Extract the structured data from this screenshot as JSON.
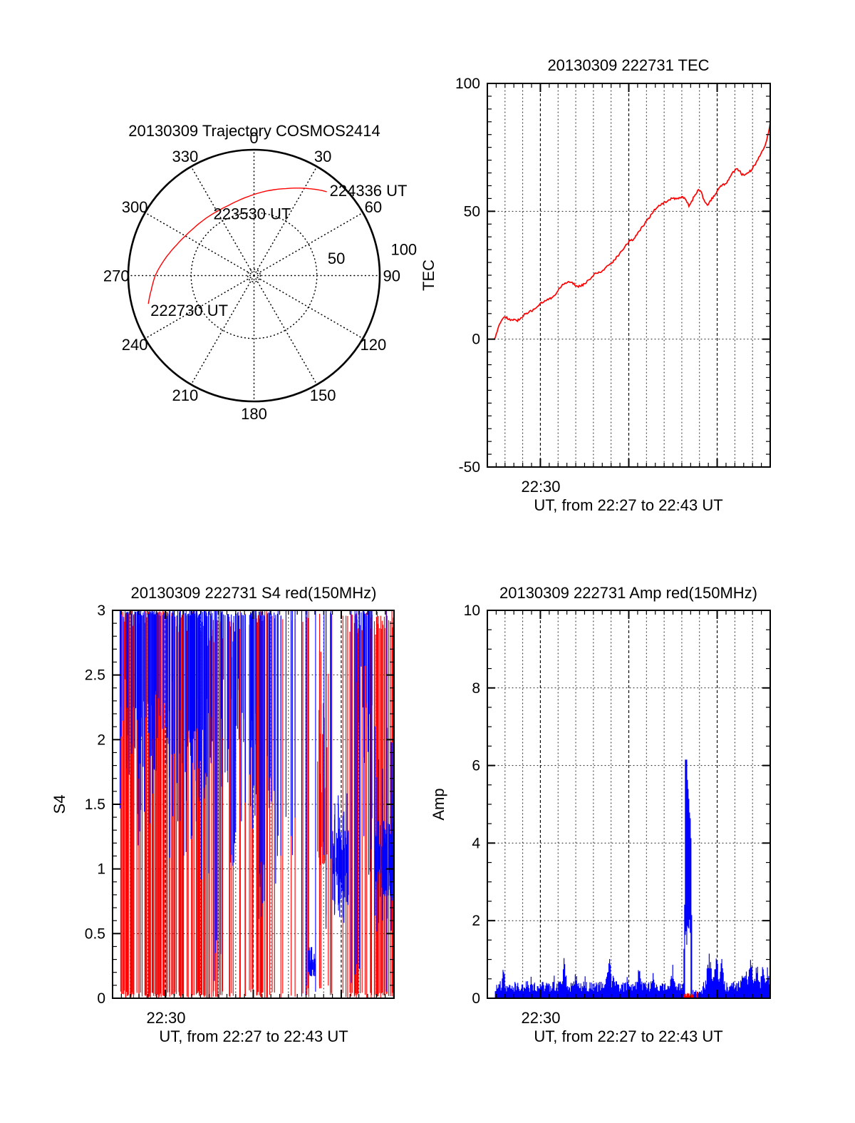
{
  "page": {
    "background": "#ffffff"
  },
  "colors": {
    "red": "#ff0000",
    "blue": "#0000ff",
    "axis": "#000000"
  },
  "noise_seed": 130309,
  "x_axis_shared": {
    "x_start": "22:27",
    "x_end": "22:43",
    "minutes_total": 16,
    "grid_every_min": 1,
    "minor_tick_min": 0.5,
    "major_grid_minutes": [
      3,
      8,
      13
    ],
    "xtick_label": "22:30",
    "xtick_minute": 3
  },
  "chart_data": [
    {
      "type": "polar",
      "title": "20130309 Trajectory COSMOS2414",
      "azimuth_ticks": [
        "0",
        "30",
        "60",
        "90",
        "120",
        "150",
        "180",
        "210",
        "240",
        "270",
        "300",
        "330"
      ],
      "rlim": [
        0,
        100
      ],
      "ring_dotted": [
        5,
        50
      ],
      "ring_labels": [
        {
          "label": "50",
          "az": 78,
          "r": 67
        },
        {
          "label": "100",
          "az": 80,
          "r": 121
        }
      ],
      "trajectory": {
        "color": "#ff0000",
        "points_az_r": [
          [
            255,
            87
          ],
          [
            262,
            82.5
          ],
          [
            270,
            78.5
          ],
          [
            278,
            73.5
          ],
          [
            285,
            69.5
          ],
          [
            292,
            66
          ],
          [
            300,
            63
          ],
          [
            308,
            61
          ],
          [
            316,
            59.8
          ],
          [
            324,
            59.1
          ],
          [
            332,
            58.8
          ],
          [
            340,
            59.3
          ],
          [
            348,
            60.8
          ],
          [
            356,
            63
          ],
          [
            364,
            66
          ],
          [
            372,
            69.5
          ],
          [
            380,
            73.5
          ],
          [
            387,
            78
          ],
          [
            392,
            81.5
          ],
          [
            396,
            84.5
          ],
          [
            399,
            86.8
          ],
          [
            401,
            88.2
          ]
        ]
      },
      "time_labels": [
        {
          "text": "222730 UT",
          "attach": "start"
        },
        {
          "text": "223530 UT",
          "attach": "mid"
        },
        {
          "text": "224336 UT",
          "attach": "end"
        }
      ]
    },
    {
      "type": "line",
      "title": "20130309 222731 TEC",
      "ylabel": "TEC",
      "xlabel": "UT, from 22:27 to 22:43 UT",
      "xtick_label": "22:30",
      "ylim": [
        -50,
        100
      ],
      "ytick_values": [
        -50,
        0,
        50,
        100
      ],
      "ytick_labels": [
        "-50",
        "0",
        "50",
        "100"
      ],
      "y_minor_step": 5,
      "grid_y_values": [
        0,
        50
      ],
      "series_color": "#ff0000",
      "breakpoints_t_v": [
        [
          0.4,
          0
        ],
        [
          0.5,
          2
        ],
        [
          0.65,
          5
        ],
        [
          0.8,
          7.6
        ],
        [
          0.95,
          8.7
        ],
        [
          1.1,
          8.3
        ],
        [
          1.3,
          7.4
        ],
        [
          1.5,
          7.7
        ],
        [
          1.7,
          7.3
        ],
        [
          1.9,
          8.2
        ],
        [
          2.1,
          9.7
        ],
        [
          2.35,
          10.5
        ],
        [
          2.6,
          11.4
        ],
        [
          2.8,
          12.8
        ],
        [
          3.0,
          14.0
        ],
        [
          3.2,
          14.6
        ],
        [
          3.45,
          15.7
        ],
        [
          3.65,
          16.1
        ],
        [
          3.85,
          17.5
        ],
        [
          4.05,
          19.8
        ],
        [
          4.25,
          21.2
        ],
        [
          4.5,
          21.9
        ],
        [
          4.65,
          22.4
        ],
        [
          4.85,
          21.7
        ],
        [
          5.05,
          20.7
        ],
        [
          5.25,
          20.7
        ],
        [
          5.45,
          21.4
        ],
        [
          5.65,
          22.6
        ],
        [
          5.85,
          24.0
        ],
        [
          6.05,
          25.4
        ],
        [
          6.3,
          26.1
        ],
        [
          6.55,
          27.0
        ],
        [
          6.8,
          28.5
        ],
        [
          7.05,
          30.0
        ],
        [
          7.3,
          31.9
        ],
        [
          7.6,
          34.4
        ],
        [
          7.85,
          36.7
        ],
        [
          8.05,
          38.4
        ],
        [
          8.25,
          39.0
        ],
        [
          8.45,
          40.9
        ],
        [
          8.7,
          43.3
        ],
        [
          8.95,
          45.6
        ],
        [
          9.2,
          47.9
        ],
        [
          9.45,
          50.6
        ],
        [
          9.65,
          52.0
        ],
        [
          9.9,
          53.0
        ],
        [
          10.2,
          54.1
        ],
        [
          10.5,
          55.2
        ],
        [
          10.75,
          54.8
        ],
        [
          11.0,
          55.6
        ],
        [
          11.2,
          54.9
        ],
        [
          11.4,
          52.2
        ],
        [
          11.5,
          52.8
        ],
        [
          11.65,
          55.2
        ],
        [
          11.85,
          57.4
        ],
        [
          11.95,
          58.8
        ],
        [
          12.1,
          57.3
        ],
        [
          12.3,
          53.6
        ],
        [
          12.45,
          52.3
        ],
        [
          12.6,
          54.0
        ],
        [
          12.8,
          55.8
        ],
        [
          13.0,
          57.7
        ],
        [
          13.2,
          59.6
        ],
        [
          13.4,
          60.6
        ],
        [
          13.55,
          61.1
        ],
        [
          13.75,
          63.6
        ],
        [
          13.95,
          65.6
        ],
        [
          14.1,
          66.5
        ],
        [
          14.25,
          66.1
        ],
        [
          14.4,
          64.3
        ],
        [
          14.55,
          64.1
        ],
        [
          14.7,
          65.1
        ],
        [
          14.9,
          65.8
        ],
        [
          15.1,
          67.8
        ],
        [
          15.3,
          70.2
        ],
        [
          15.5,
          72.8
        ],
        [
          15.65,
          74.9
        ],
        [
          15.8,
          77.8
        ],
        [
          15.9,
          80.6
        ],
        [
          16.0,
          84.6
        ]
      ]
    },
    {
      "type": "spikes",
      "title": "20130309 222731 S4 red(150MHz)",
      "ylabel": "S4",
      "xlabel": "UT, from 22:27 to 22:43 UT",
      "xtick_label": "22:30",
      "ylim": [
        0,
        3
      ],
      "ytick_values": [
        0,
        0.5,
        1,
        1.5,
        2,
        2.5,
        3
      ],
      "ytick_labels": [
        "0",
        "0.5",
        "1",
        "1.5",
        "2",
        "2.5",
        "3"
      ],
      "y_minor_step": 0.1,
      "grid_y_values": [
        0.5,
        1,
        1.5,
        2,
        2.5
      ],
      "red_events": [
        [
          0.4,
          2.0,
          0,
          0.06,
          2.85,
          3.0,
          38
        ],
        [
          2.0,
          3.6,
          0,
          0.05,
          2.95,
          3.0,
          42
        ],
        [
          3.6,
          5.2,
          0,
          0.06,
          2.8,
          3.0,
          34
        ],
        [
          5.2,
          6.3,
          0,
          0.06,
          2.7,
          3.0,
          22
        ],
        [
          6.35,
          7.15,
          0,
          0.05,
          2.9,
          3.0,
          4
        ],
        [
          7.2,
          8.2,
          0,
          0.08,
          2.85,
          3.0,
          10
        ],
        [
          8.2,
          9.1,
          0,
          0.05,
          2.9,
          3.0,
          16
        ],
        [
          9.15,
          10.55,
          0,
          0.05,
          2.9,
          3.0,
          5
        ],
        [
          10.6,
          11.2,
          0,
          0.08,
          2.9,
          3.0,
          5
        ],
        [
          11.65,
          12.2,
          1.0,
          1.25,
          1.35,
          2.3,
          18
        ],
        [
          11.7,
          12.3,
          0,
          0.15,
          2.4,
          3.0,
          4
        ],
        [
          12.35,
          12.6,
          0,
          0.05,
          2.9,
          3.0,
          3
        ],
        [
          12.8,
          13.4,
          0,
          0.05,
          2.9,
          3.0,
          3
        ],
        [
          13.4,
          15.2,
          0,
          0.05,
          2.8,
          3.0,
          28
        ],
        [
          15.2,
          16.0,
          0,
          0.05,
          2.85,
          3.0,
          18
        ]
      ],
      "blue_events": [
        [
          0.42,
          2.5,
          1.7,
          2.6,
          2.95,
          3.0,
          46
        ],
        [
          0.42,
          2.5,
          1.15,
          1.7,
          3.0,
          3.0,
          10
        ],
        [
          2.5,
          3.2,
          1.8,
          2.45,
          2.95,
          3.0,
          12
        ],
        [
          3.2,
          5.7,
          1.5,
          2.5,
          2.95,
          3.0,
          52
        ],
        [
          3.2,
          5.7,
          0.85,
          1.5,
          3.0,
          3.0,
          11
        ],
        [
          5.7,
          6.15,
          0.12,
          0.55,
          3.0,
          3.0,
          5
        ],
        [
          6.15,
          7.3,
          1.6,
          2.5,
          2.95,
          3.0,
          18
        ],
        [
          6.7,
          7.0,
          0.9,
          1.3,
          2.3,
          3.0,
          7
        ],
        [
          7.3,
          8.3,
          1.3,
          2.3,
          2.95,
          3.0,
          20
        ],
        [
          8.3,
          8.7,
          0.45,
          1.1,
          2.95,
          3.0,
          8
        ],
        [
          8.7,
          9.6,
          0.8,
          1.9,
          2.95,
          3.0,
          10
        ],
        [
          9.6,
          10.5,
          0.9,
          1.6,
          3.0,
          3.0,
          4
        ],
        [
          10.55,
          11.12,
          0,
          0.1,
          3.0,
          3.0,
          3
        ],
        [
          11.12,
          11.52,
          0.17,
          0.27,
          0.26,
          0.4,
          24
        ],
        [
          11.52,
          11.56,
          0.05,
          0.05,
          3.0,
          3.0,
          1
        ],
        [
          11.8,
          12.42,
          0.05,
          1.6,
          3.0,
          3.0,
          4
        ],
        [
          12.5,
          13.42,
          0.72,
          0.98,
          1.02,
          1.32,
          50
        ],
        [
          12.5,
          13.42,
          0.58,
          0.75,
          1.35,
          1.6,
          9
        ],
        [
          13.45,
          14.05,
          0,
          0.3,
          3.0,
          3.0,
          4
        ],
        [
          13.85,
          14.85,
          1.8,
          2.6,
          2.95,
          3.0,
          18
        ],
        [
          14.0,
          14.8,
          0.9,
          1.4,
          3.0,
          3.0,
          5
        ],
        [
          14.9,
          16.0,
          0.78,
          1.02,
          1.06,
          1.38,
          55
        ],
        [
          14.9,
          16.0,
          0.5,
          0.78,
          1.4,
          2.2,
          11
        ],
        [
          15.55,
          15.6,
          0.05,
          0.05,
          3.0,
          3.0,
          1
        ]
      ]
    },
    {
      "type": "noise_area",
      "title": "20130309 222731 Amp red(150MHz)",
      "ylabel": "Amp",
      "xlabel": "UT, from 22:27 to 22:43 UT",
      "xtick_label": "22:30",
      "ylim": [
        0,
        10
      ],
      "ytick_values": [
        0,
        2,
        4,
        6,
        8,
        10
      ],
      "ytick_labels": [
        "0",
        "2",
        "4",
        "6",
        "8",
        "10"
      ],
      "y_minor_step": 0.5,
      "grid_y_values": [
        2,
        4,
        6,
        8
      ],
      "blue": {
        "t_start": 0.45,
        "base": 0.3,
        "bumps": [
          [
            0.9,
            0.35,
            0.08
          ],
          [
            4.35,
            0.55,
            0.1
          ],
          [
            5.0,
            0.3,
            0.08
          ],
          [
            6.9,
            0.55,
            0.1
          ],
          [
            7.15,
            0.3,
            0.08
          ],
          [
            8.6,
            0.45,
            0.1
          ],
          [
            9.35,
            0.25,
            0.08
          ],
          [
            10.45,
            0.3,
            0.07
          ],
          [
            12.55,
            0.8,
            0.12
          ],
          [
            12.95,
            0.7,
            0.12
          ],
          [
            13.25,
            0.55,
            0.1
          ],
          [
            14.6,
            0.2,
            0.3
          ],
          [
            14.9,
            0.6,
            0.1
          ],
          [
            15.25,
            0.5,
            0.12
          ],
          [
            15.6,
            0.4,
            0.1
          ],
          [
            15.85,
            0.45,
            0.08
          ]
        ],
        "spike": {
          "rise": [
            11.1,
            11.19
          ],
          "main": [
            11.19,
            11.5
          ],
          "fall": [
            11.5,
            11.56
          ],
          "low_after": [
            11.56,
            12.18
          ],
          "peak": 6.15,
          "peak_t": 11.23,
          "main_base": 4.55,
          "main_amp": 1.6,
          "main_width": 0.14,
          "main_lo": [
            1.35,
            2.2
          ],
          "low_value": [
            0.09,
            0.22
          ]
        }
      },
      "red": {
        "strips": [
          [
            11.13,
            11.66,
            0.04,
            0.14
          ],
          [
            11.83,
            11.87,
            0.0,
            0.18
          ]
        ]
      }
    }
  ]
}
